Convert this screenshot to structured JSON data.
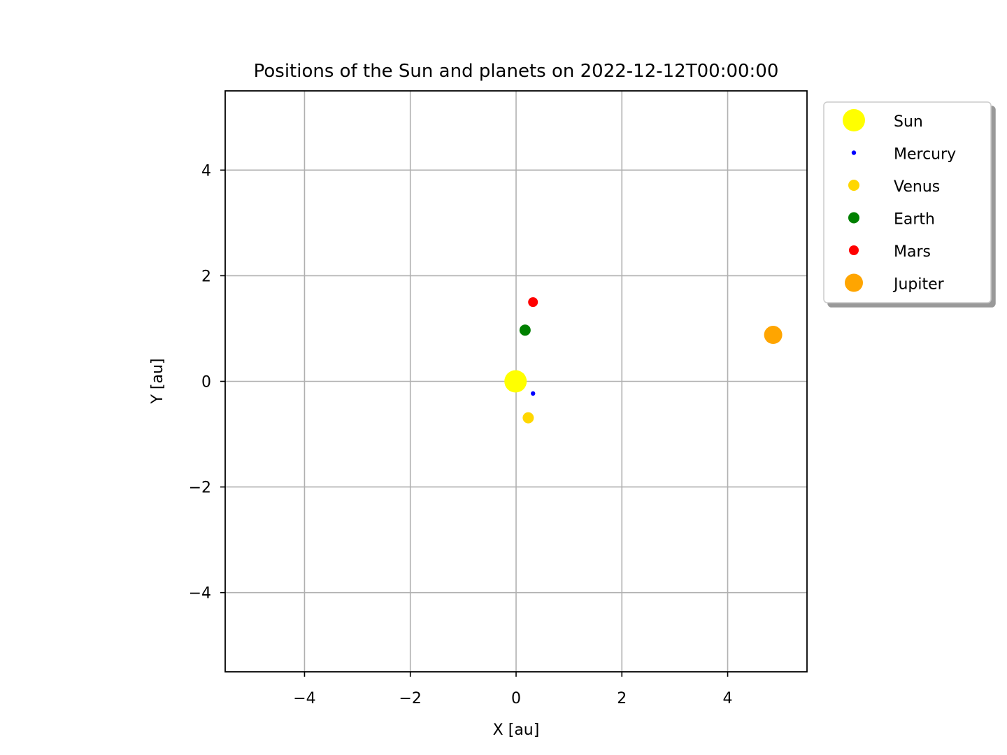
{
  "chart_data": {
    "type": "scatter",
    "title": "Positions of the Sun and planets on 2022-12-12T00:00:00",
    "xlabel": "X [au]",
    "ylabel": "Y [au]",
    "xlim": [
      -5.5,
      5.5
    ],
    "ylim": [
      -5.5,
      5.5
    ],
    "xticks": [
      -4,
      -2,
      0,
      2,
      4
    ],
    "yticks": [
      -4,
      -2,
      0,
      2,
      4
    ],
    "xtick_labels": [
      "−4",
      "−2",
      "0",
      "2",
      "4"
    ],
    "ytick_labels": [
      "−4",
      "−2",
      "0",
      "2",
      "4"
    ],
    "grid": true,
    "legend_position": "outside-upper-right",
    "series": [
      {
        "name": "Sun",
        "x": -0.01,
        "y": 0.0,
        "color": "#ffff00",
        "marker_size": "large"
      },
      {
        "name": "Mercury",
        "x": 0.32,
        "y": -0.23,
        "color": "#0000ff",
        "marker_size": "tiny"
      },
      {
        "name": "Venus",
        "x": 0.23,
        "y": -0.69,
        "color": "#ffd700",
        "marker_size": "medium"
      },
      {
        "name": "Earth",
        "x": 0.17,
        "y": 0.97,
        "color": "#008000",
        "marker_size": "medium"
      },
      {
        "name": "Mars",
        "x": 0.32,
        "y": 1.5,
        "color": "#ff0000",
        "marker_size": "small"
      },
      {
        "name": "Jupiter",
        "x": 4.86,
        "y": 0.88,
        "color": "#ffa500",
        "marker_size": "big"
      }
    ]
  }
}
